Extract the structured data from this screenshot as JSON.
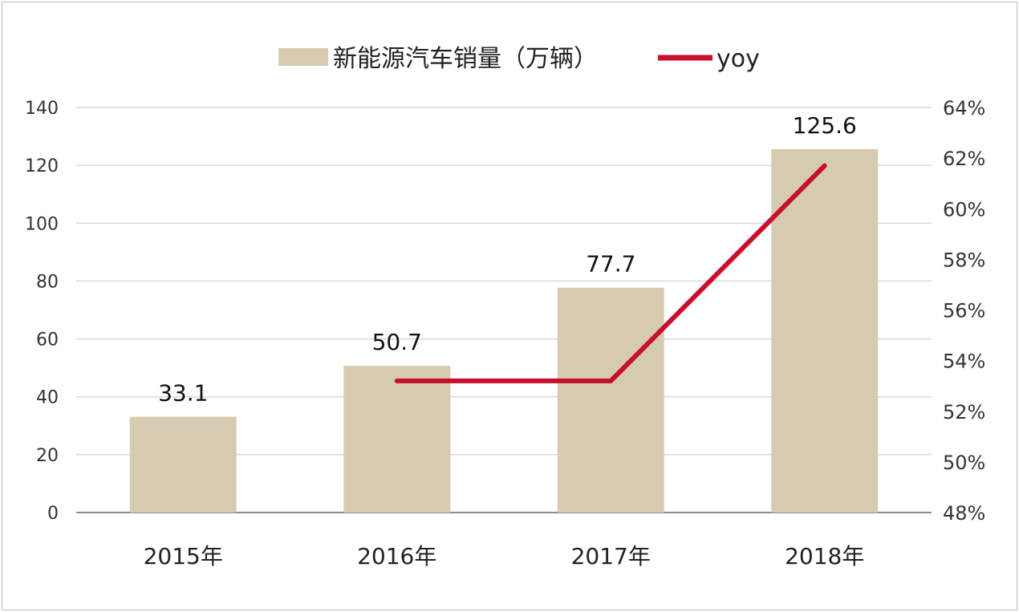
{
  "chart_data": {
    "type": "bar",
    "categories": [
      "2015年",
      "2016年",
      "2017年",
      "2018年"
    ],
    "series": [
      {
        "name": "新能源汽车销量（万辆）",
        "type": "bar",
        "axis": "left",
        "values": [
          33.1,
          50.7,
          77.7,
          125.6
        ],
        "data_labels": [
          "33.1",
          "50.7",
          "77.7",
          "125.6"
        ],
        "color": "#d6cbb0"
      },
      {
        "name": "yoy",
        "type": "line",
        "axis": "right",
        "values": [
          null,
          53.2,
          53.2,
          61.7
        ],
        "unit": "%",
        "color": "#c8102e"
      }
    ],
    "y_left": {
      "min": 0,
      "max": 140,
      "ticks": [
        "0",
        "20",
        "40",
        "60",
        "80",
        "100",
        "120",
        "140"
      ]
    },
    "y_right": {
      "min": 48,
      "max": 64,
      "ticks": [
        "48%",
        "50%",
        "52%",
        "54%",
        "56%",
        "58%",
        "60%",
        "62%",
        "64%"
      ]
    },
    "grid": true,
    "legend_position": "top-center"
  }
}
